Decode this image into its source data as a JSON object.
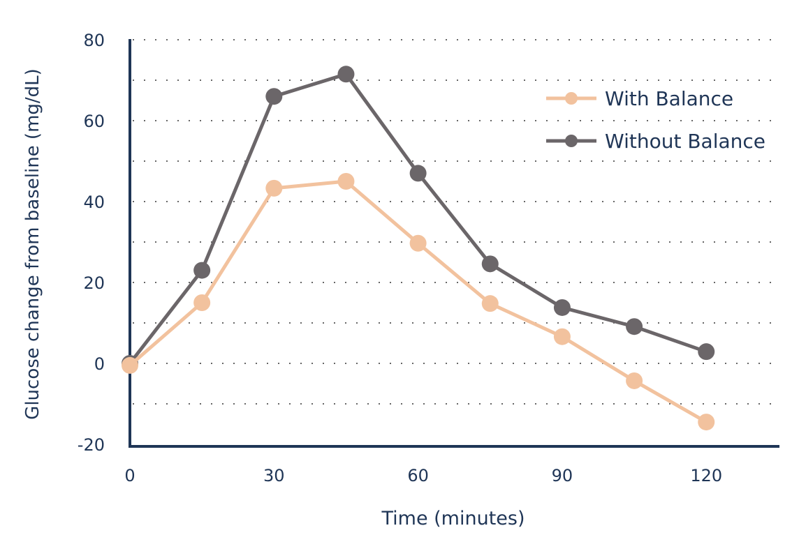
{
  "chart_data": {
    "type": "line",
    "title": "",
    "xlabel": "Time (minutes)",
    "ylabel": "Glucose change from baseline (mg/dL)",
    "xlim": [
      0,
      135
    ],
    "ylim": [
      -20,
      80
    ],
    "xticks": [
      0,
      30,
      60,
      90,
      120
    ],
    "yticks": [
      -20,
      0,
      20,
      40,
      60,
      80
    ],
    "grid": true,
    "legend_position": "top-right",
    "x": [
      0,
      15,
      30,
      45,
      60,
      75,
      90,
      105,
      120
    ],
    "series": [
      {
        "name": "With Balance",
        "color": "#f2c29e",
        "values": [
          -0.5,
          15,
          43.3,
          45,
          29.7,
          14.8,
          6.6,
          -4.3,
          -14.5
        ]
      },
      {
        "name": "Without Balance",
        "color": "#6b6669",
        "values": [
          0,
          23,
          66,
          71.5,
          47,
          24.6,
          13.8,
          9.1,
          2.9
        ]
      }
    ]
  }
}
